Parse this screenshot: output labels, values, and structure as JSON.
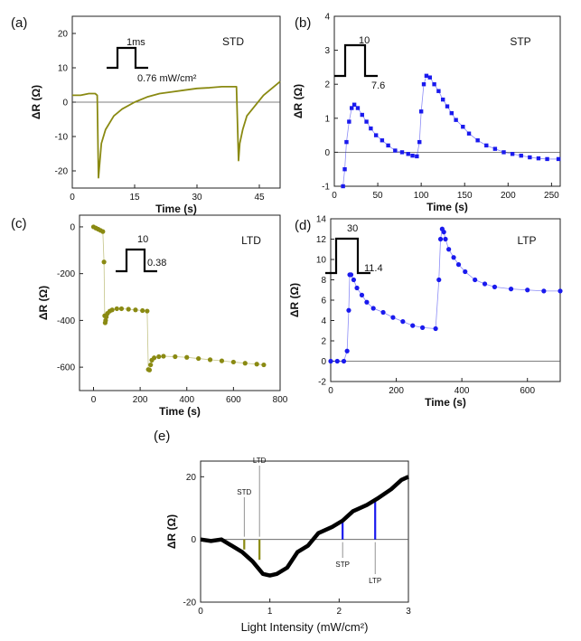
{
  "colors": {
    "olive": "#8a8a12",
    "blue": "#1a1aee",
    "black": "#000000"
  },
  "chart_data": [
    {
      "panel": "(a)",
      "type": "line",
      "label": "STD",
      "xlabel": "Time (s)",
      "ylabel": "ΔR (Ω)",
      "xlim": [
        0,
        50
      ],
      "ylim": [
        -25,
        25
      ],
      "xticks": [
        0,
        15,
        30,
        45
      ],
      "yticks": [
        -20,
        -10,
        0,
        10,
        20
      ],
      "pulse": {
        "width": "1ms",
        "amplitude": "0.76 mW/cm²"
      },
      "color": "olive",
      "style": "line",
      "series": [
        {
          "x": [
            0,
            2,
            4,
            5.5,
            6,
            6.3,
            7,
            8,
            10,
            12,
            15,
            18,
            21,
            24,
            27,
            30,
            33,
            36,
            39.5,
            40,
            40.3,
            41,
            42,
            44,
            46,
            48,
            50
          ],
          "y": [
            2,
            2,
            2.5,
            2.5,
            2,
            -22,
            -12,
            -8,
            -4,
            -2,
            0,
            1.5,
            2.5,
            3,
            3.5,
            4,
            4.2,
            4.5,
            4.5,
            -17,
            -12,
            -8,
            -4,
            -1,
            2,
            4,
            6
          ]
        }
      ]
    },
    {
      "panel": "(b)",
      "type": "scatter",
      "label": "STP",
      "xlabel": "Time (s)",
      "ylabel": "ΔR (Ω)",
      "xlim": [
        0,
        260
      ],
      "ylim": [
        -1,
        4
      ],
      "xticks": [
        0,
        50,
        100,
        150,
        200,
        250
      ],
      "yticks": [
        -1,
        0,
        1,
        2,
        3,
        4
      ],
      "pulse": {
        "width": "10",
        "amplitude": "7.6"
      },
      "color": "blue",
      "style": "markers",
      "series": [
        {
          "x": [
            10,
            12,
            14,
            17,
            20,
            23,
            27,
            32,
            37,
            42,
            48,
            55,
            62,
            70,
            78,
            85,
            90,
            95,
            98,
            100,
            103,
            106,
            110,
            115,
            120,
            125,
            130,
            135,
            140,
            148,
            155,
            165,
            175,
            185,
            195,
            205,
            215,
            225,
            235,
            245,
            258
          ],
          "y": [
            -1,
            -0.5,
            0.3,
            0.9,
            1.3,
            1.4,
            1.3,
            1.1,
            0.9,
            0.7,
            0.5,
            0.35,
            0.2,
            0.05,
            0,
            -0.05,
            -0.1,
            -0.12,
            0.3,
            1.2,
            2.0,
            2.25,
            2.2,
            2.0,
            1.8,
            1.55,
            1.35,
            1.15,
            0.95,
            0.75,
            0.55,
            0.35,
            0.2,
            0.1,
            0,
            -0.05,
            -0.1,
            -0.15,
            -0.18,
            -0.2,
            -0.2
          ]
        }
      ]
    },
    {
      "panel": "(c)",
      "type": "scatter",
      "label": "LTD",
      "xlabel": "Time (s)",
      "ylabel": "ΔR (Ω)",
      "xlim": [
        -60,
        800
      ],
      "ylim": [
        -700,
        50
      ],
      "xticks": [
        0,
        200,
        400,
        600,
        800
      ],
      "yticks": [
        0,
        -200,
        -400,
        -600
      ],
      "pulse": {
        "width": "10",
        "amplitude": "0.38"
      },
      "color": "olive",
      "style": "markers",
      "series": [
        {
          "x": [
            0,
            10,
            20,
            30,
            40,
            45,
            48,
            50,
            52,
            55,
            60,
            70,
            80,
            100,
            120,
            150,
            180,
            210,
            230,
            235,
            240,
            245,
            250,
            260,
            280,
            300,
            350,
            400,
            450,
            500,
            550,
            600,
            650,
            700,
            730
          ],
          "y": [
            0,
            -5,
            -10,
            -15,
            -20,
            -150,
            -380,
            -410,
            -400,
            -385,
            -370,
            -360,
            -355,
            -350,
            -350,
            -352,
            -355,
            -358,
            -360,
            -610,
            -612,
            -590,
            -570,
            -560,
            -555,
            -553,
            -555,
            -558,
            -563,
            -568,
            -573,
            -578,
            -583,
            -587,
            -590
          ]
        }
      ]
    },
    {
      "panel": "(d)",
      "type": "scatter",
      "label": "LTP",
      "xlabel": "Time (s)",
      "ylabel": "ΔR (Ω)",
      "xlim": [
        0,
        700
      ],
      "ylim": [
        -2,
        14
      ],
      "xticks": [
        0,
        200,
        400,
        600
      ],
      "yticks": [
        -2,
        0,
        2,
        4,
        6,
        8,
        10,
        12,
        14
      ],
      "pulse": {
        "width": "30",
        "amplitude": "11.4"
      },
      "color": "blue",
      "style": "markers",
      "series": [
        {
          "x": [
            0,
            20,
            40,
            50,
            55,
            58,
            62,
            70,
            80,
            95,
            110,
            130,
            160,
            190,
            220,
            250,
            280,
            320,
            330,
            335,
            340,
            345,
            350,
            360,
            375,
            390,
            410,
            440,
            470,
            500,
            550,
            600,
            650,
            700
          ],
          "y": [
            0,
            0,
            0,
            1,
            5,
            8.5,
            8.5,
            8,
            7.2,
            6.5,
            5.8,
            5.2,
            4.8,
            4.3,
            3.9,
            3.5,
            3.3,
            3.2,
            8,
            12,
            13,
            12.7,
            12,
            11,
            10.2,
            9.5,
            8.8,
            8,
            7.6,
            7.3,
            7.1,
            7.0,
            6.9,
            6.9
          ]
        }
      ]
    },
    {
      "panel": "(e)",
      "type": "line",
      "xlabel": "Light Intensity (mW/cm²)",
      "ylabel": "ΔR (Ω)",
      "xlim": [
        0,
        3
      ],
      "ylim": [
        -20,
        25
      ],
      "xticks": [
        0,
        1,
        2,
        3
      ],
      "yticks": [
        -20,
        0,
        20
      ],
      "series": [
        {
          "x": [
            0,
            0.15,
            0.3,
            0.45,
            0.6,
            0.75,
            0.9,
            1.0,
            1.1,
            1.25,
            1.4,
            1.55,
            1.7,
            1.9,
            2.05,
            2.2,
            2.4,
            2.55,
            2.75,
            2.9,
            3.0
          ],
          "y": [
            0,
            -0.5,
            0,
            -2,
            -4,
            -7,
            -11,
            -11.5,
            -11,
            -9,
            -4,
            -2,
            2,
            4,
            6,
            9,
            11,
            13,
            16,
            19,
            20
          ]
        }
      ],
      "markers": [
        {
          "label": "STD",
          "x": 0.63,
          "y": -3.2,
          "color": "olive"
        },
        {
          "label": "LTD",
          "x": 0.85,
          "y": -6.5,
          "color": "olive"
        },
        {
          "label": "STP",
          "x": 2.05,
          "y": 6.5,
          "color": "blue"
        },
        {
          "label": "LTP",
          "x": 2.52,
          "y": 12.5,
          "color": "blue"
        }
      ]
    }
  ]
}
